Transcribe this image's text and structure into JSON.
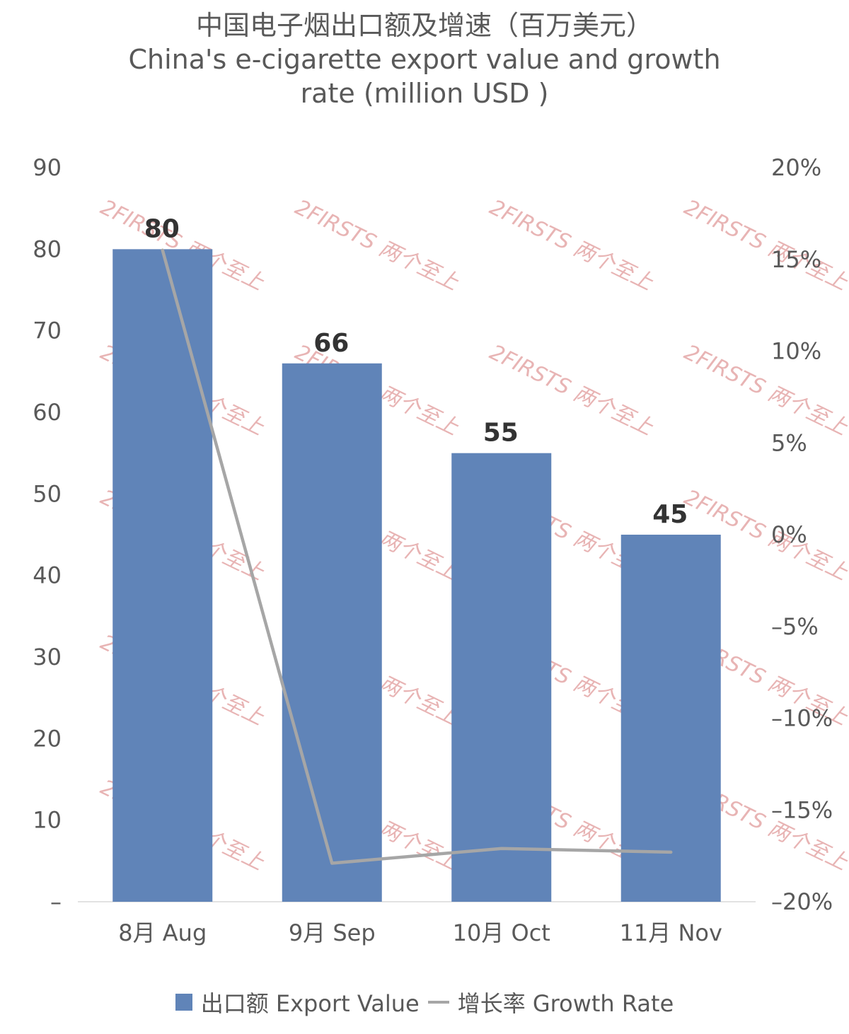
{
  "chart_data": {
    "type": "bar",
    "title": "中国电子烟出口额及增速（百万美元）",
    "subtitle_lines": [
      "China's e-cigarette export value and growth",
      "rate (million USD )"
    ],
    "categories": [
      "8月 Aug",
      "9月 Sep",
      "10月 Oct",
      "11月 Nov"
    ],
    "series": [
      {
        "name": "出口额 Export Value",
        "type": "bar",
        "axis": "left",
        "color": "#6084b8",
        "values": [
          80,
          66,
          55,
          45
        ],
        "labels": [
          "80",
          "66",
          "55",
          "45"
        ]
      },
      {
        "name": "增长率 Growth Rate",
        "type": "line",
        "axis": "right",
        "color": "#a6a6a6",
        "values": [
          15.5,
          -17.9,
          -17.1,
          -17.3
        ]
      }
    ],
    "ylim": [
      0,
      90
    ],
    "y_ticks": [
      "–",
      "10",
      "20",
      "30",
      "40",
      "50",
      "60",
      "70",
      "80",
      "90"
    ],
    "y2lim": [
      -20,
      20
    ],
    "y2_ticks": [
      "–20%",
      "–15%",
      "–10%",
      "–5%",
      "0%",
      "5%",
      "10%",
      "15%",
      "20%"
    ],
    "grid": false,
    "legend_position": "bottom"
  },
  "watermark": "2FIRSTS 两个至上"
}
